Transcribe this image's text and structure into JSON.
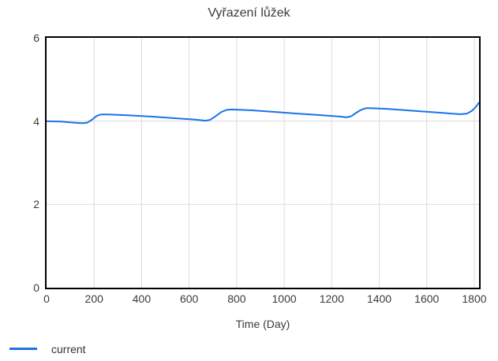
{
  "chart_data": {
    "type": "line",
    "title": "Vyřazení lůžek",
    "xlabel": "Time (Day)",
    "ylabel": "",
    "xlim": [
      0,
      1820
    ],
    "ylim": [
      0,
      6
    ],
    "xticks": [
      0,
      200,
      400,
      600,
      800,
      1000,
      1200,
      1400,
      1600,
      1800
    ],
    "yticks": [
      0,
      2,
      4,
      6
    ],
    "grid": true,
    "grid_color": "#dcdcdc",
    "border_color": "#000000",
    "text_color": "#3b3b3b",
    "legend_position": "bottom-left",
    "series": [
      {
        "name": "current",
        "color": "#1a73e8",
        "points": [
          [
            0,
            4.0
          ],
          [
            60,
            3.99
          ],
          [
            120,
            3.96
          ],
          [
            150,
            3.95
          ],
          [
            170,
            3.96
          ],
          [
            190,
            4.03
          ],
          [
            210,
            4.12
          ],
          [
            228,
            4.16
          ],
          [
            260,
            4.16
          ],
          [
            340,
            4.14
          ],
          [
            440,
            4.11
          ],
          [
            540,
            4.07
          ],
          [
            620,
            4.04
          ],
          [
            655,
            4.02
          ],
          [
            668,
            4.01
          ],
          [
            688,
            4.03
          ],
          [
            712,
            4.12
          ],
          [
            736,
            4.22
          ],
          [
            758,
            4.27
          ],
          [
            778,
            4.28
          ],
          [
            860,
            4.26
          ],
          [
            960,
            4.22
          ],
          [
            1060,
            4.18
          ],
          [
            1160,
            4.14
          ],
          [
            1235,
            4.11
          ],
          [
            1262,
            4.09
          ],
          [
            1283,
            4.12
          ],
          [
            1303,
            4.2
          ],
          [
            1323,
            4.27
          ],
          [
            1343,
            4.31
          ],
          [
            1365,
            4.31
          ],
          [
            1440,
            4.29
          ],
          [
            1540,
            4.25
          ],
          [
            1640,
            4.21
          ],
          [
            1710,
            4.18
          ],
          [
            1742,
            4.165
          ],
          [
            1768,
            4.18
          ],
          [
            1788,
            4.24
          ],
          [
            1803,
            4.32
          ],
          [
            1813,
            4.39
          ],
          [
            1820,
            4.45
          ]
        ]
      }
    ]
  }
}
